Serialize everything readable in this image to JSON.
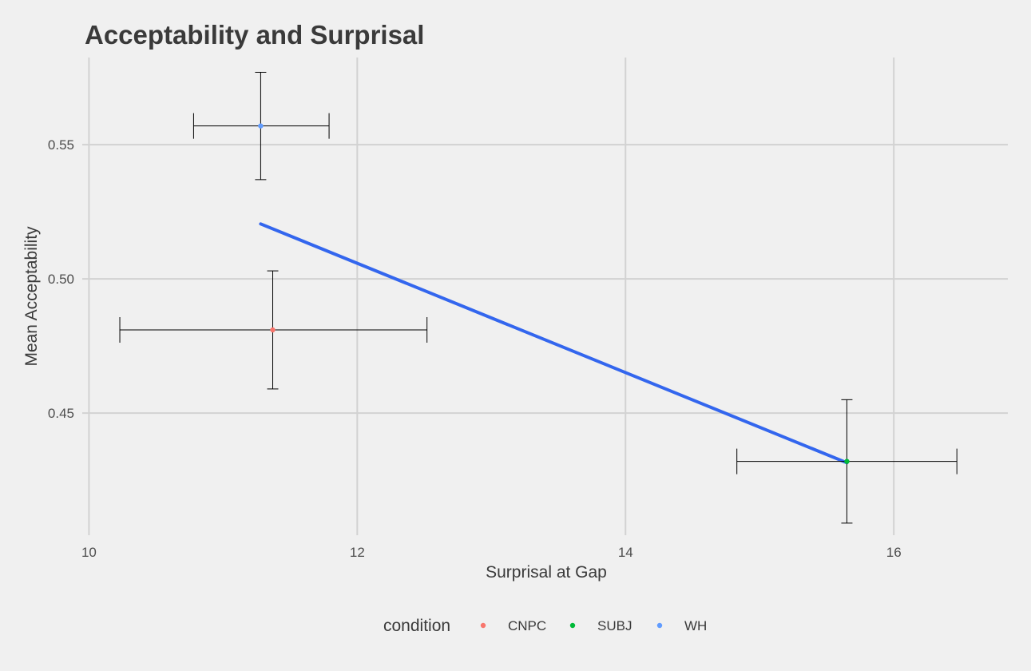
{
  "chart_data": {
    "type": "scatter",
    "title": "Acceptability and Surprisal",
    "xlabel": "Surprisal at Gap",
    "ylabel": "Mean Acceptability",
    "xlim": [
      9.95,
      16.85
    ],
    "ylim": [
      0.4045,
      0.5825
    ],
    "x_ticks": [
      {
        "value": 10,
        "label": "10"
      },
      {
        "value": 12,
        "label": "12"
      },
      {
        "value": 14,
        "label": "14"
      },
      {
        "value": 16,
        "label": "16"
      }
    ],
    "y_ticks": [
      {
        "value": 0.45,
        "label": "0.45"
      },
      {
        "value": 0.5,
        "label": "0.50"
      },
      {
        "value": 0.55,
        "label": "0.55"
      }
    ],
    "grid": true,
    "legend": {
      "title": "condition",
      "position": "bottom"
    },
    "series": [
      {
        "name": "CNPC",
        "color": "#f8766d",
        "x": 11.37,
        "y": 0.481,
        "x_err": [
          10.23,
          12.52
        ],
        "y_err": [
          0.459,
          0.503
        ]
      },
      {
        "name": "SUBJ",
        "color": "#00ba38",
        "x": 15.65,
        "y": 0.432,
        "x_err": [
          14.83,
          16.47
        ],
        "y_err": [
          0.409,
          0.455
        ]
      },
      {
        "name": "WH",
        "color": "#619cff",
        "x": 11.28,
        "y": 0.557,
        "x_err": [
          10.78,
          11.79
        ],
        "y_err": [
          0.537,
          0.577
        ]
      }
    ],
    "trend_line": {
      "color": "#3366ee",
      "x": [
        11.28,
        15.65
      ],
      "y": [
        0.5205,
        0.4315
      ]
    }
  }
}
